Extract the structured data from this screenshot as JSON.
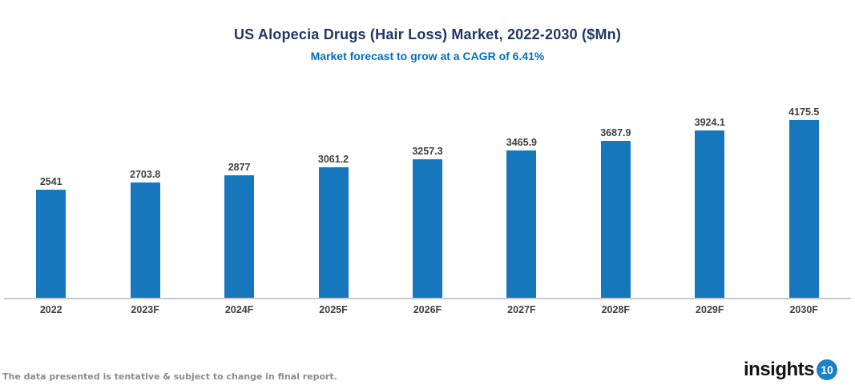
{
  "header": {
    "title": "US Alopecia Drugs (Hair Loss) Market, 2022-2030 ($Mn)",
    "subtitle": "Market forecast to grow at a CAGR of 6.41%"
  },
  "chart_data": {
    "type": "bar",
    "title": "US Alopecia Drugs (Hair Loss) Market, 2022-2030 ($Mn)",
    "subtitle": "Market forecast to grow at a CAGR of 6.41%",
    "categories": [
      "2022",
      "2023F",
      "2024F",
      "2025F",
      "2026F",
      "2027F",
      "2028F",
      "2029F",
      "2030F"
    ],
    "values": [
      2541,
      2703.8,
      2877,
      3061.2,
      3257.3,
      3465.9,
      3687.9,
      3924.1,
      4175.5
    ],
    "data_labels": [
      "2541",
      "2703.8",
      "2877",
      "3061.2",
      "3257.3",
      "3465.9",
      "3687.9",
      "3924.1",
      "4175.5"
    ],
    "xlabel": "",
    "ylabel": "",
    "ylim": [
      0,
      4400
    ],
    "grid": false,
    "legend": false,
    "data_labels_shown": true
  },
  "footer": {
    "disclaimer": "The data presented is tentative & subject to change in final report.",
    "logo_text": "insights",
    "logo_badge": "10"
  },
  "colors": {
    "title": "#1F3864",
    "subtitle": "#0070C0",
    "bar": "#1777BC",
    "data_label": "#404040",
    "axis_label": "#404040",
    "axis_line": "#C9C9C9",
    "disclaimer": "#8C8C8C",
    "logo_text": "#141414",
    "logo_badge_bg": "#1B80C4",
    "logo_badge_text": "#FFFFFF",
    "background": "#FFFFFF"
  }
}
